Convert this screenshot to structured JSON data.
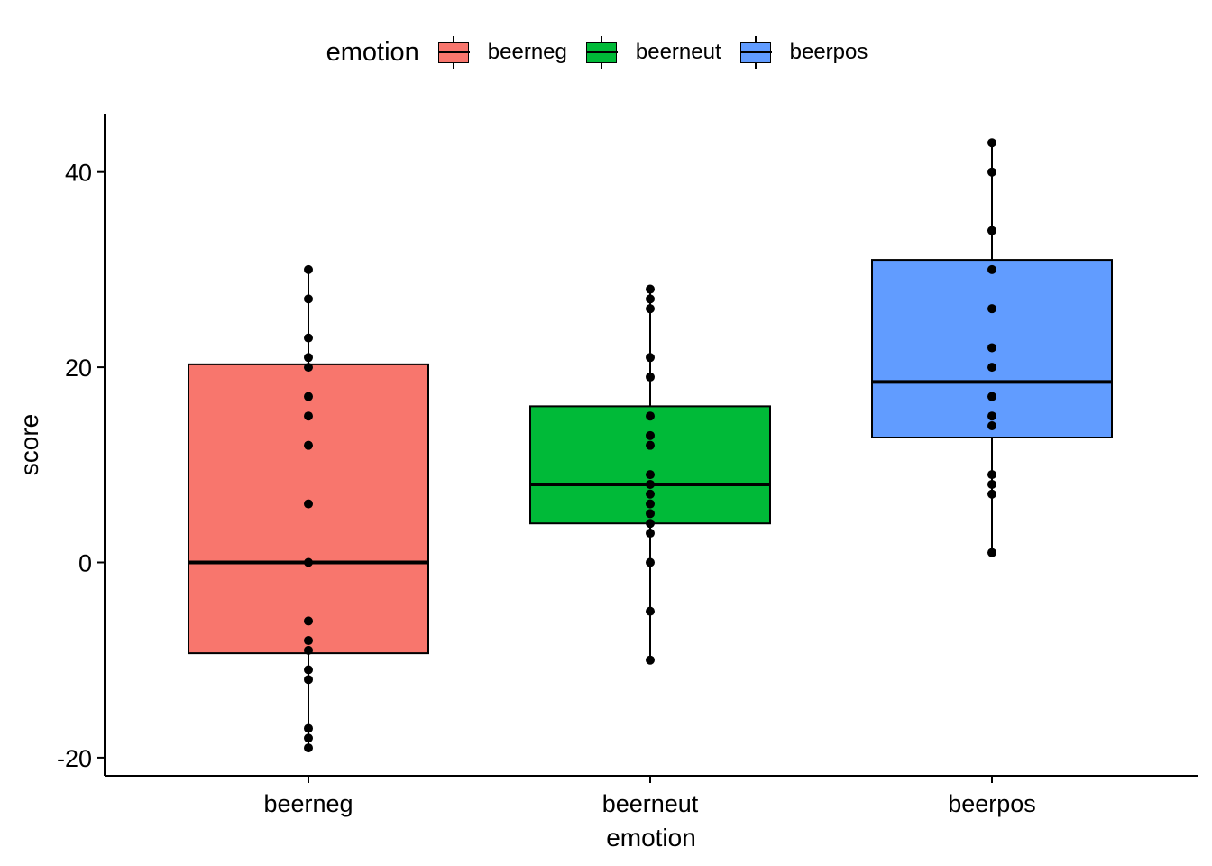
{
  "chart_data": {
    "type": "boxplot",
    "xlabel": "emotion",
    "ylabel": "score",
    "ylim": [
      -22,
      46
    ],
    "yticks": [
      -20,
      0,
      20,
      40
    ],
    "grid": false,
    "legend": {
      "title": "emotion",
      "placement": "top",
      "entries": [
        "beerneg",
        "beerneut",
        "beerpos"
      ]
    },
    "categories": [
      "beerneg",
      "beerneut",
      "beerpos"
    ],
    "colors": {
      "beerneg": "#F8766D",
      "beerneut": "#00BA38",
      "beerpos": "#619CFF"
    },
    "boxes": [
      {
        "category": "beerneg",
        "min": -19,
        "q1": -9.3,
        "median": 0,
        "q3": 20.3,
        "max": 30,
        "points": [
          30,
          27,
          23,
          21,
          20,
          17,
          15,
          12,
          6,
          0,
          -6,
          -8,
          -9,
          -11,
          -12,
          -17,
          -18,
          -19
        ]
      },
      {
        "category": "beerneut",
        "min": -10,
        "q1": 4,
        "median": 8,
        "q3": 16,
        "max": 28,
        "points": [
          28,
          27,
          26,
          21,
          19,
          15,
          13,
          12,
          9,
          8,
          7,
          6,
          5,
          4,
          3,
          0,
          -5,
          -10
        ]
      },
      {
        "category": "beerpos",
        "min": 1,
        "q1": 12.8,
        "median": 18.5,
        "q3": 31,
        "max": 43,
        "points": [
          43,
          40,
          34,
          30,
          26,
          22,
          20,
          17,
          15,
          14,
          9,
          8,
          7,
          1
        ]
      }
    ]
  }
}
